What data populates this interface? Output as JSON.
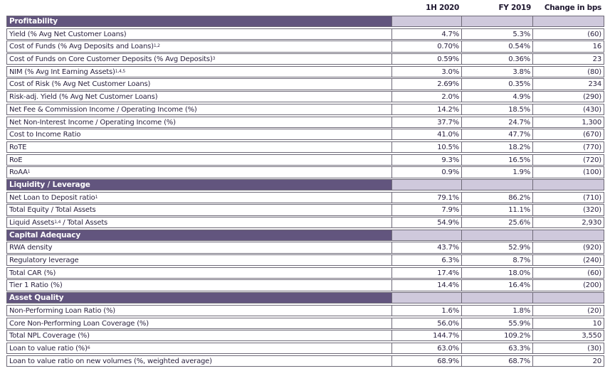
{
  "headers": {
    "col1": "1H 2020",
    "col2": "FY 2019",
    "col3": "Change in bps"
  },
  "rows": [
    {
      "type": "section",
      "label": "Profitability"
    },
    {
      "type": "data",
      "label": "Yield (% Avg Net Customer Loans)",
      "sup": "",
      "v1": "4.7%",
      "v2": "5.3%",
      "v3": "(60)"
    },
    {
      "type": "data",
      "label": "Cost of Funds (% Avg Deposits and Loans)",
      "sup": "1,2",
      "v1": "0.70%",
      "v2": "0.54%",
      "v3": "16"
    },
    {
      "type": "data",
      "label": "Cost of Funds on Core Customer Deposits (% Avg Deposits)",
      "sup": "3",
      "v1": "0.59%",
      "v2": "0.36%",
      "v3": "23"
    },
    {
      "type": "data",
      "label": "NIM (% Avg Int Earning Assets)",
      "sup": "1,4,5",
      "v1": "3.0%",
      "v2": "3.8%",
      "v3": "(80)"
    },
    {
      "type": "data",
      "label": "Cost of Risk (% Avg Net Customer Loans)",
      "sup": "",
      "v1": "2.69%",
      "v2": "0.35%",
      "v3": "234"
    },
    {
      "type": "data",
      "label": "Risk-adj. Yield (% Avg Net Customer Loans)",
      "sup": "",
      "v1": "2.0%",
      "v2": "4.9%",
      "v3": "(290)"
    },
    {
      "type": "data",
      "label": "Net Fee & Commission Income / Operating Income (%)",
      "sup": "",
      "v1": "14.2%",
      "v2": "18.5%",
      "v3": "(430)"
    },
    {
      "type": "data",
      "label": "Net Non-Interest Income / Operating Income (%)",
      "sup": "",
      "v1": "37.7%",
      "v2": "24.7%",
      "v3": "1,300"
    },
    {
      "type": "data",
      "label": "Cost to Income Ratio",
      "sup": "",
      "v1": "41.0%",
      "v2": "47.7%",
      "v3": "(670)"
    },
    {
      "type": "data",
      "label": "RoTE",
      "sup": "",
      "v1": "10.5%",
      "v2": "18.2%",
      "v3": "(770)"
    },
    {
      "type": "data",
      "label": "RoE",
      "sup": "",
      "v1": "9.3%",
      "v2": "16.5%",
      "v3": "(720)"
    },
    {
      "type": "data",
      "label": "RoAA",
      "sup": "1",
      "v1": "0.9%",
      "v2": "1.9%",
      "v3": "(100)"
    },
    {
      "type": "section",
      "label": "Liquidity / Leverage"
    },
    {
      "type": "data",
      "label": "Net Loan to Deposit ratio",
      "sup": "1",
      "v1": "79.1%",
      "v2": "86.2%",
      "v3": "(710)"
    },
    {
      "type": "data",
      "label": "Total Equity / Total Assets",
      "sup": "",
      "v1": "7.9%",
      "v2": "11.1%",
      "v3": "(320)"
    },
    {
      "type": "data",
      "label": "Liquid Assets",
      "sup": "1,4",
      "label2": " / Total Assets",
      "v1": "54.9%",
      "v2": "25.6%",
      "v3": "2,930"
    },
    {
      "type": "section",
      "label": "Capital Adequacy"
    },
    {
      "type": "data",
      "label": "RWA density",
      "sup": "",
      "v1": "43.7%",
      "v2": "52.9%",
      "v3": "(920)"
    },
    {
      "type": "data",
      "label": "Regulatory leverage",
      "sup": "",
      "v1": "6.3%",
      "v2": "8.7%",
      "v3": "(240)"
    },
    {
      "type": "data",
      "label": "Total CAR (%)",
      "sup": "",
      "v1": "17.4%",
      "v2": "18.0%",
      "v3": "(60)"
    },
    {
      "type": "data",
      "label": "Tier 1 Ratio (%)",
      "sup": "",
      "v1": "14.4%",
      "v2": "16.4%",
      "v3": "(200)"
    },
    {
      "type": "section",
      "label": "Asset Quality"
    },
    {
      "type": "data",
      "label": "Non-Performing Loan Ratio (%)",
      "sup": "",
      "v1": "1.6%",
      "v2": "1.8%",
      "v3": "(20)"
    },
    {
      "type": "data",
      "label": "Core Non-Performing Loan Coverage (%)",
      "sup": "",
      "v1": "56.0%",
      "v2": "55.9%",
      "v3": "10"
    },
    {
      "type": "data",
      "label": "Total NPL Coverage (%)",
      "sup": "",
      "v1": "144.7%",
      "v2": "109.2%",
      "v3": "3,550"
    },
    {
      "type": "data",
      "label": "Loan to value ratio (%)",
      "sup": "6",
      "v1": "63.0%",
      "v2": "63.3%",
      "v3": "(30)"
    },
    {
      "type": "data",
      "label": "Loan to value ratio on new volumes (%, weighted average)",
      "sup": "",
      "v1": "68.9%",
      "v2": "68.7%",
      "v3": "20"
    }
  ]
}
